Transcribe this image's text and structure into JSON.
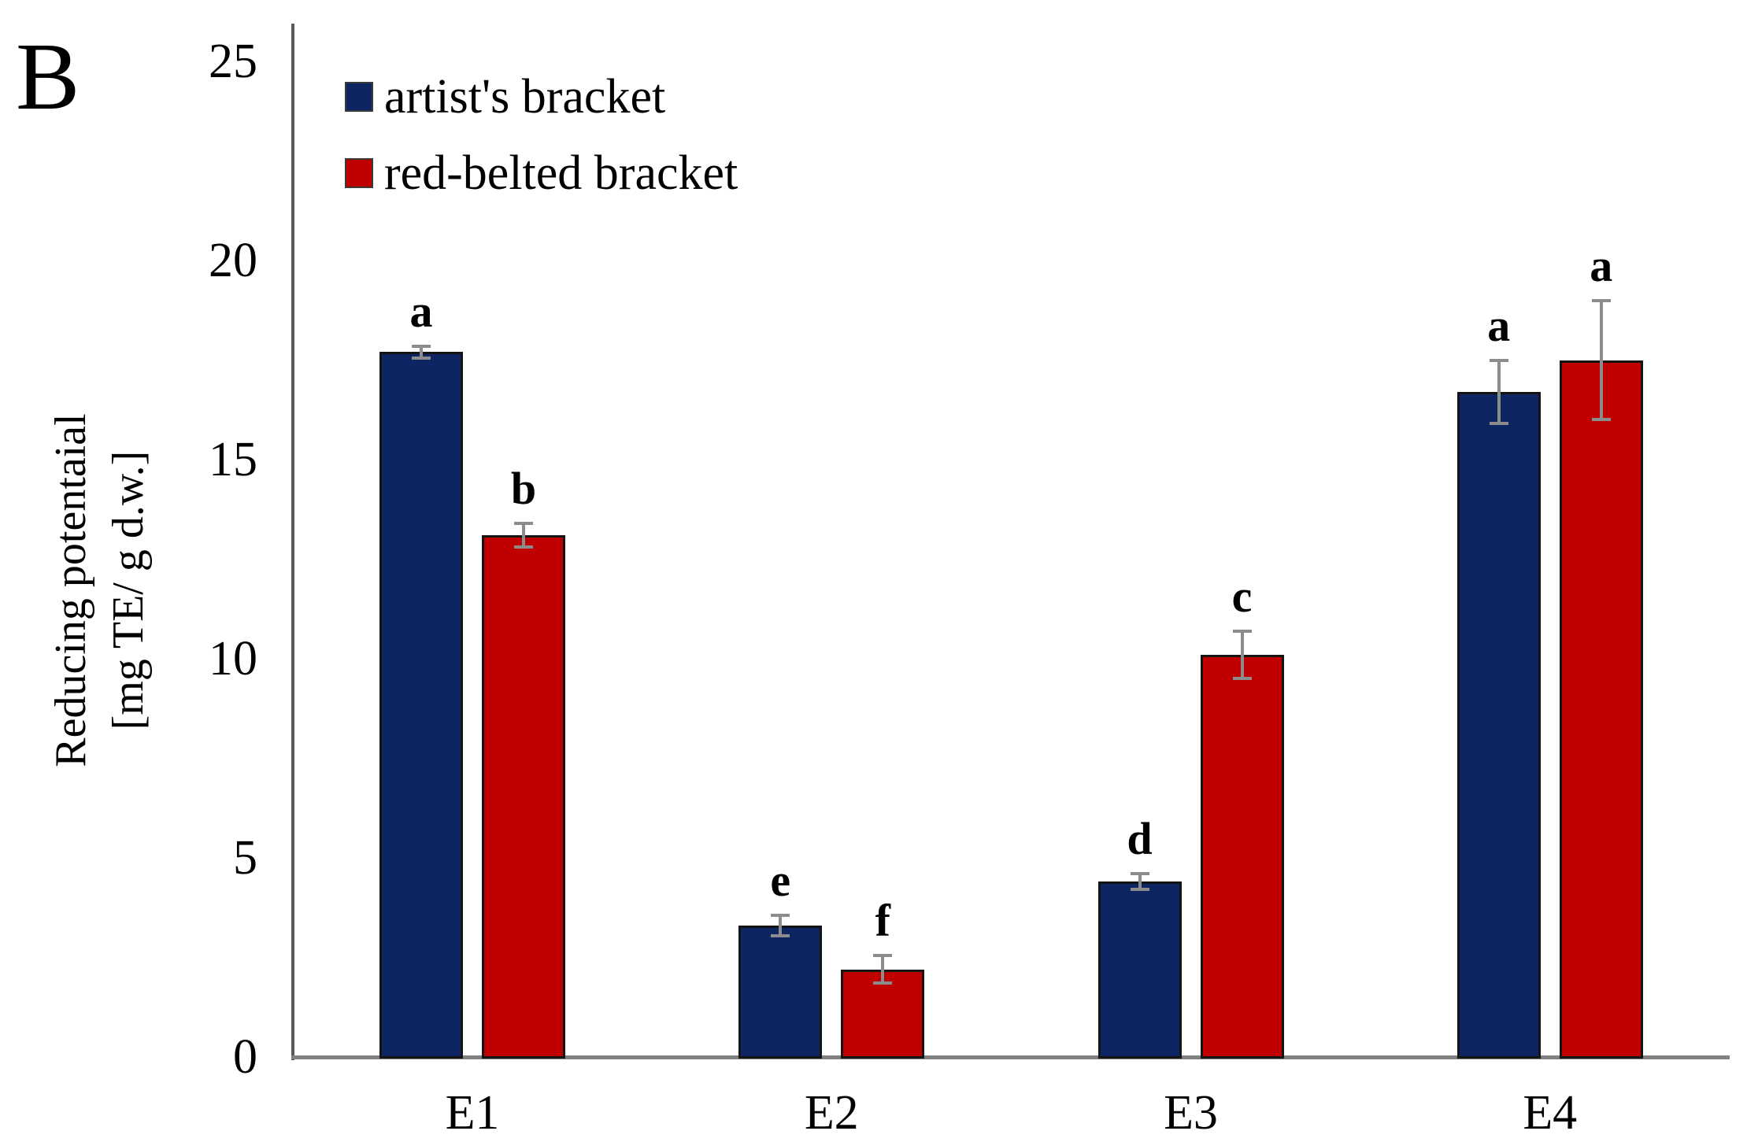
{
  "figure": {
    "panel_label": "B",
    "background": "#ffffff"
  },
  "chart_data": {
    "type": "bar",
    "title": "",
    "panel_label": "B",
    "categories": [
      "E1",
      "E2",
      "E3",
      "E4"
    ],
    "series": [
      {
        "name": "artist's bracket",
        "color": "#0d2562",
        "values": [
          17.7,
          3.3,
          4.4,
          16.7
        ],
        "errors": [
          0.15,
          0.25,
          0.2,
          0.8
        ],
        "significance_letters": [
          "a",
          "e",
          "d",
          "a"
        ]
      },
      {
        "name": "red-belted bracket",
        "color": "#c00000",
        "values": [
          13.1,
          2.2,
          10.1,
          17.5
        ],
        "errors": [
          0.3,
          0.35,
          0.6,
          1.5
        ],
        "significance_letters": [
          "b",
          "f",
          "c",
          "a"
        ]
      }
    ],
    "ylabel_line1": "Reducing potentaial",
    "ylabel_line2": "[mg TE/ g d.w.]",
    "xlabel": "",
    "yticks": [
      0,
      5,
      10,
      15,
      20,
      25
    ],
    "ylim": [
      0,
      25
    ],
    "grid": false,
    "legend_position": "top-left-inside",
    "error_bar_color": "#8c8c8c",
    "y_axis_color": "#595959",
    "x_axis_color": "#808080",
    "bar_border_color": "#141414"
  }
}
